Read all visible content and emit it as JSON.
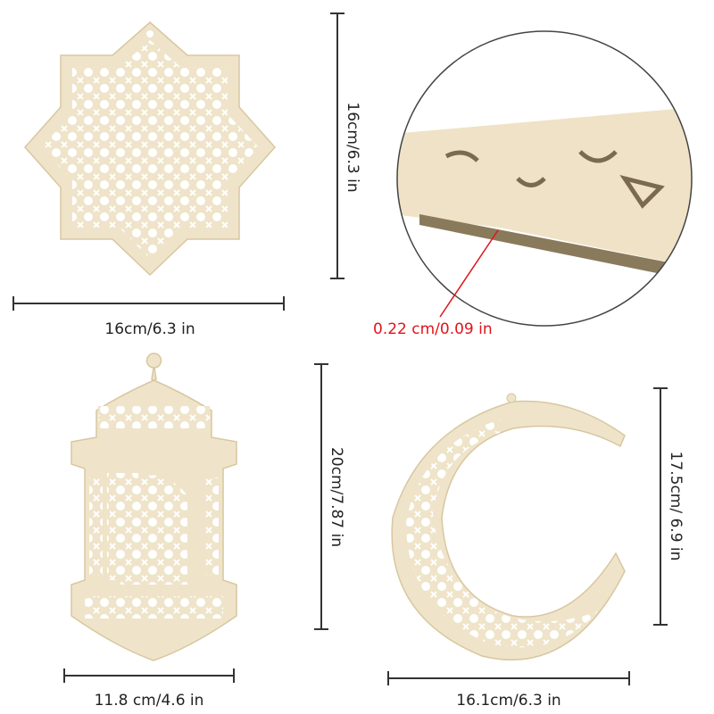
{
  "dimensions": {
    "star_width": "16cm/6.3 in",
    "star_height": "16cm/6.3 in",
    "thickness": "0.22 cm/0.09 in",
    "lantern_height": "20cm/7.87 in",
    "lantern_width": "11.8 cm/4.6 in",
    "moon_height": "17.5cm/ 6.9 in",
    "moon_width": "16.1cm/6.3 in"
  },
  "colors": {
    "wood": "#efe4c9",
    "thickness_callout": "#e0141b",
    "dimension_line": "#333333"
  }
}
